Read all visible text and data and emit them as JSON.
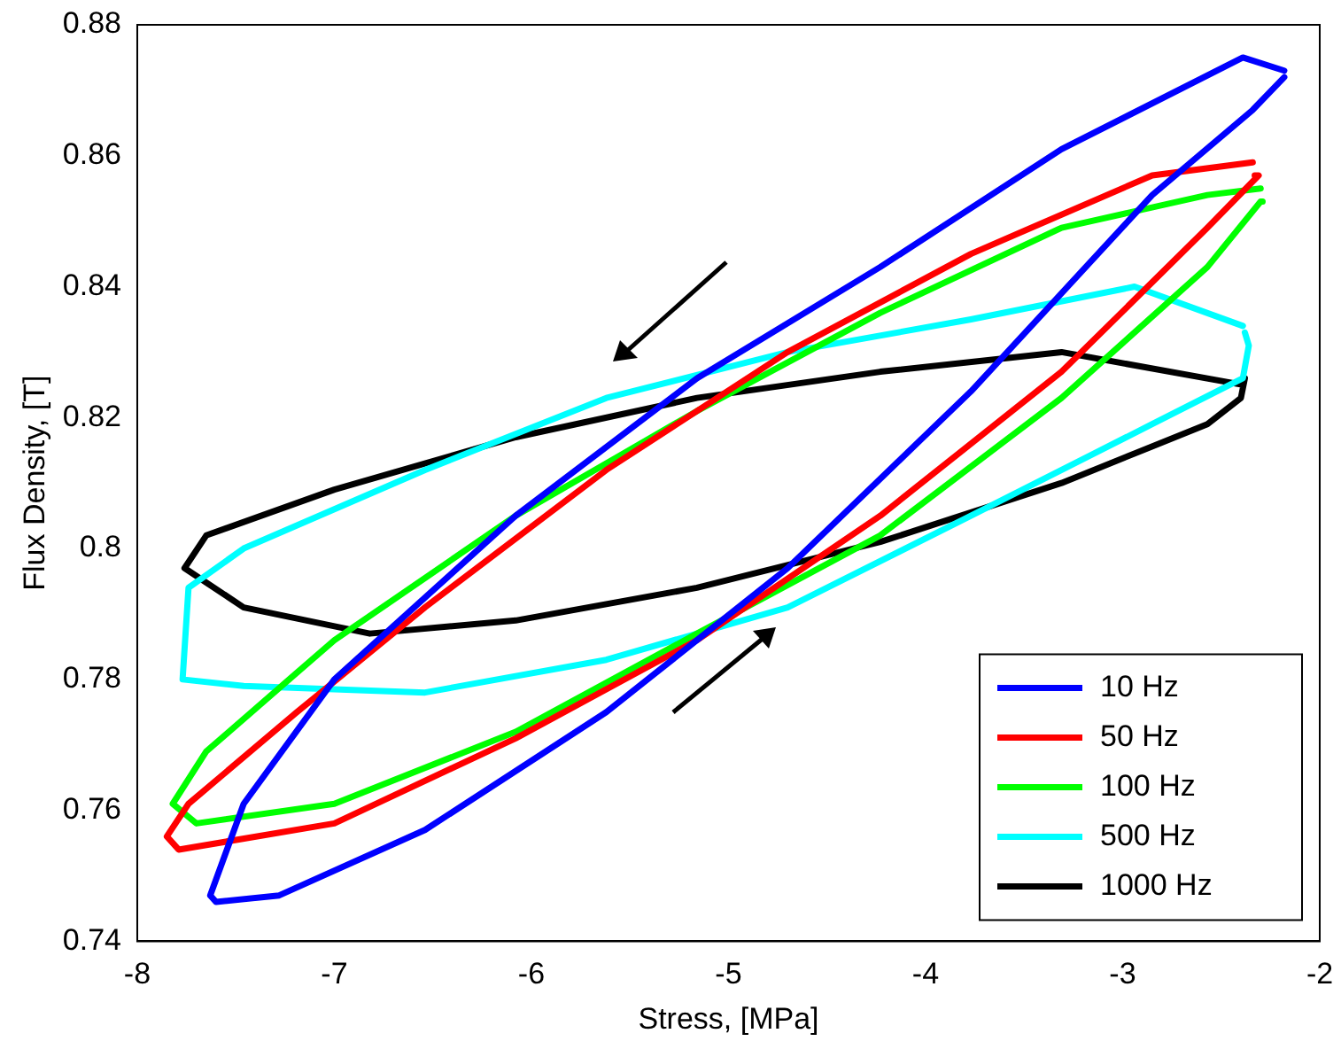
{
  "chart_data": {
    "type": "line",
    "xlabel": "Stress, [MPa]",
    "ylabel": "Flux Density, [T]",
    "xlim": [
      -8,
      -2
    ],
    "xticks": [
      -8,
      -7,
      -6,
      -5,
      -4,
      -3,
      -2
    ],
    "ylim": [
      0.74,
      0.88
    ],
    "yticks": [
      0.74,
      0.76,
      0.78,
      0.8,
      0.82,
      0.84,
      0.86,
      0.88
    ],
    "grid": false,
    "legend": "bottom right",
    "marker": "none",
    "line_style": "solid",
    "series": [
      {
        "name": "10 Hz",
        "color": "#0000ff",
        "x": [
          -2.18,
          -2.39,
          -3.31,
          -4.23,
          -5.16,
          -6.08,
          -7.0,
          -7.46,
          -7.63,
          -7.6,
          -7.28,
          -6.54,
          -5.62,
          -4.7,
          -3.77,
          -2.85,
          -2.34,
          -2.18
        ],
        "values": [
          0.873,
          0.875,
          0.861,
          0.843,
          0.826,
          0.805,
          0.78,
          0.761,
          0.747,
          0.746,
          0.747,
          0.757,
          0.775,
          0.797,
          0.824,
          0.854,
          0.867,
          0.872
        ]
      },
      {
        "name": "50 Hz",
        "color": "#ff0000",
        "x": [
          -2.34,
          -2.85,
          -3.77,
          -4.7,
          -5.62,
          -6.54,
          -7.19,
          -7.74,
          -7.85,
          -7.79,
          -7.0,
          -6.08,
          -5.16,
          -4.23,
          -3.31,
          -2.57,
          -2.31,
          -2.33
        ],
        "values": [
          0.859,
          0.857,
          0.845,
          0.83,
          0.812,
          0.791,
          0.775,
          0.761,
          0.756,
          0.754,
          0.758,
          0.771,
          0.786,
          0.805,
          0.827,
          0.849,
          0.857,
          0.857
        ]
      },
      {
        "name": "100 Hz",
        "color": "#00ff00",
        "x": [
          -2.3,
          -2.57,
          -3.31,
          -4.23,
          -5.16,
          -6.08,
          -7.0,
          -7.65,
          -7.82,
          -7.7,
          -7.0,
          -6.08,
          -5.16,
          -4.23,
          -3.31,
          -2.57,
          -2.3,
          -2.29
        ],
        "values": [
          0.855,
          0.854,
          0.849,
          0.836,
          0.821,
          0.805,
          0.786,
          0.769,
          0.761,
          0.758,
          0.761,
          0.772,
          0.787,
          0.802,
          0.823,
          0.843,
          0.853,
          0.853
        ]
      },
      {
        "name": "500 Hz",
        "color": "#00ffff",
        "x": [
          -2.39,
          -2.94,
          -3.77,
          -4.7,
          -5.62,
          -6.54,
          -7.46,
          -7.74,
          -7.77,
          -7.46,
          -6.54,
          -5.62,
          -4.7,
          -3.77,
          -2.85,
          -2.39,
          -2.36,
          -2.38
        ],
        "values": [
          0.834,
          0.84,
          0.835,
          0.83,
          0.823,
          0.812,
          0.8,
          0.794,
          0.78,
          0.779,
          0.778,
          0.783,
          0.791,
          0.805,
          0.819,
          0.826,
          0.831,
          0.833
        ]
      },
      {
        "name": "1000 Hz",
        "color": "#000000",
        "x": [
          -2.39,
          -3.31,
          -4.23,
          -5.16,
          -6.08,
          -7.0,
          -7.65,
          -7.76,
          -7.46,
          -6.82,
          -6.08,
          -5.16,
          -4.23,
          -3.31,
          -2.57,
          -2.4,
          -2.38
        ],
        "values": [
          0.825,
          0.83,
          0.827,
          0.823,
          0.817,
          0.809,
          0.802,
          0.797,
          0.791,
          0.787,
          0.789,
          0.794,
          0.801,
          0.81,
          0.819,
          0.823,
          0.826
        ]
      }
    ]
  }
}
